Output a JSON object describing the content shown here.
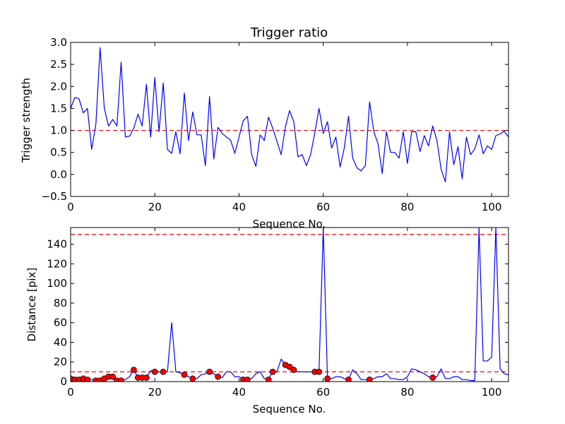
{
  "chart_data": [
    {
      "type": "line",
      "title": "Trigger ratio",
      "xlabel": "Sequence No.",
      "ylabel": "Trigger strength",
      "xlim": [
        0,
        104
      ],
      "ylim": [
        -0.5,
        3.0
      ],
      "xticks": [
        "0",
        "20",
        "40",
        "60",
        "80",
        "100"
      ],
      "yticks": [
        "−0.5",
        "0.0",
        "0.5",
        "1.0",
        "1.5",
        "2.0",
        "2.5",
        "3.0"
      ],
      "grid": false,
      "series": [
        {
          "color": "#0000ff",
          "x": [
            0,
            1,
            2,
            3,
            4,
            5,
            6,
            7,
            8,
            9,
            10,
            11,
            12,
            13,
            14,
            15,
            16,
            17,
            18,
            19,
            20,
            21,
            22,
            23,
            24,
            25,
            26,
            27,
            28,
            29,
            30,
            31,
            32,
            33,
            34,
            35,
            36,
            37,
            38,
            39,
            40,
            41,
            42,
            43,
            44,
            45,
            46,
            47,
            48,
            49,
            50,
            51,
            52,
            53,
            54,
            55,
            56,
            57,
            58,
            59,
            60,
            61,
            62,
            63,
            64,
            65,
            66,
            67,
            68,
            69,
            70,
            71,
            72,
            73,
            74,
            75,
            76,
            77,
            78,
            79,
            80,
            81,
            82,
            83,
            84,
            85,
            86,
            87,
            88,
            89,
            90,
            91,
            92,
            93,
            94,
            95,
            96,
            97,
            98,
            99,
            100,
            101,
            102,
            103,
            104
          ],
          "values": [
            1.5,
            1.75,
            1.72,
            1.4,
            1.5,
            0.57,
            1.15,
            2.88,
            1.5,
            1.1,
            1.25,
            1.1,
            2.55,
            0.85,
            0.87,
            1.05,
            1.37,
            1.1,
            2.05,
            0.85,
            2.2,
            0.97,
            2.08,
            0.57,
            0.48,
            0.97,
            0.47,
            1.85,
            0.77,
            1.42,
            0.9,
            0.9,
            0.2,
            1.77,
            0.35,
            1.07,
            0.93,
            0.85,
            0.78,
            0.48,
            0.85,
            1.22,
            1.32,
            0.45,
            0.18,
            0.9,
            0.77,
            1.3,
            1.05,
            0.75,
            0.45,
            1.07,
            1.45,
            1.2,
            0.4,
            0.45,
            0.2,
            0.45,
            0.95,
            1.5,
            0.93,
            1.2,
            0.6,
            0.85,
            0.17,
            0.6,
            1.32,
            0.37,
            0.15,
            0.08,
            0.2,
            1.65,
            0.98,
            0.7,
            0.02,
            0.97,
            0.5,
            0.5,
            0.37,
            0.97,
            0.25,
            0.97,
            0.97,
            0.52,
            0.88,
            0.65,
            1.1,
            0.77,
            0.12,
            -0.17,
            0.97,
            0.22,
            0.63,
            -0.1,
            0.85,
            0.45,
            0.58,
            0.9,
            0.47,
            0.65,
            0.57,
            0.88,
            0.92,
            0.98,
            0.85
          ]
        }
      ],
      "reference_line": {
        "y": 1.0,
        "color": "#ff0000",
        "style": "dashed"
      }
    },
    {
      "type": "line",
      "title": "",
      "xlabel": "Sequence No.",
      "ylabel": "Distance [pix]",
      "xlim": [
        0,
        104
      ],
      "ylim": [
        0,
        157
      ],
      "xticks": [
        "0",
        "20",
        "40",
        "60",
        "80",
        "100"
      ],
      "yticks": [
        "0",
        "20",
        "40",
        "60",
        "80",
        "100",
        "120",
        "140"
      ],
      "grid": false,
      "series": [
        {
          "color": "#0000ff",
          "x": [
            0,
            1,
            2,
            3,
            4,
            5,
            6,
            7,
            8,
            9,
            10,
            11,
            12,
            13,
            14,
            15,
            16,
            17,
            18,
            19,
            20,
            21,
            22,
            23,
            24,
            25,
            26,
            27,
            28,
            29,
            30,
            31,
            32,
            33,
            34,
            35,
            36,
            37,
            38,
            39,
            40,
            41,
            42,
            43,
            44,
            45,
            46,
            47,
            48,
            49,
            50,
            51,
            52,
            53,
            54,
            55,
            56,
            57,
            58,
            59,
            60,
            61,
            62,
            63,
            64,
            65,
            66,
            67,
            68,
            69,
            70,
            71,
            72,
            73,
            74,
            75,
            76,
            77,
            78,
            79,
            80,
            81,
            82,
            83,
            84,
            85,
            86,
            87,
            88,
            89,
            90,
            91,
            92,
            93,
            94,
            95,
            96,
            97,
            98,
            99,
            100,
            101,
            102,
            103,
            104
          ],
          "values": [
            5,
            3,
            3,
            4,
            3,
            2,
            2,
            3,
            5,
            5,
            5,
            2,
            2,
            2,
            5,
            12,
            4,
            4,
            4,
            11,
            11,
            10,
            10,
            10,
            60,
            10,
            9,
            7,
            5,
            3,
            3,
            7,
            8,
            10,
            8,
            5,
            4,
            10,
            10,
            5,
            5,
            3,
            3,
            3,
            8,
            10,
            3,
            3,
            10,
            10,
            23,
            17,
            15,
            12,
            10,
            10,
            10,
            10,
            10,
            10,
            157,
            3,
            3,
            5,
            5,
            3,
            2,
            12,
            8,
            2,
            2,
            2,
            3,
            5,
            5,
            8,
            3,
            3,
            2,
            2,
            5,
            13,
            12,
            10,
            8,
            5,
            5,
            5,
            13,
            3,
            3,
            5,
            5,
            2,
            2,
            1,
            1,
            157,
            21,
            21,
            25,
            157,
            13,
            8,
            7
          ]
        }
      ],
      "markers": {
        "color": "#ff0000",
        "x": [
          0,
          1,
          2,
          3,
          4,
          6,
          7,
          8,
          9,
          10,
          11,
          12,
          15,
          16,
          17,
          18,
          20,
          22,
          27,
          29,
          33,
          35,
          41,
          42,
          47,
          48,
          51,
          52,
          53,
          58,
          59,
          61,
          66,
          71,
          86
        ],
        "values": [
          3,
          2,
          2,
          3,
          2,
          1,
          1,
          3,
          5,
          5,
          1,
          1,
          12,
          4,
          4,
          4,
          10,
          10,
          7,
          3,
          10,
          5,
          2,
          2,
          2,
          10,
          17,
          15,
          12,
          10,
          10,
          3,
          2,
          2,
          4
        ]
      },
      "reference_lines": [
        {
          "y": 150,
          "color": "#ff0000",
          "style": "dashed"
        },
        {
          "y": 10,
          "color": "#ff0000",
          "style": "dashed"
        }
      ]
    }
  ]
}
